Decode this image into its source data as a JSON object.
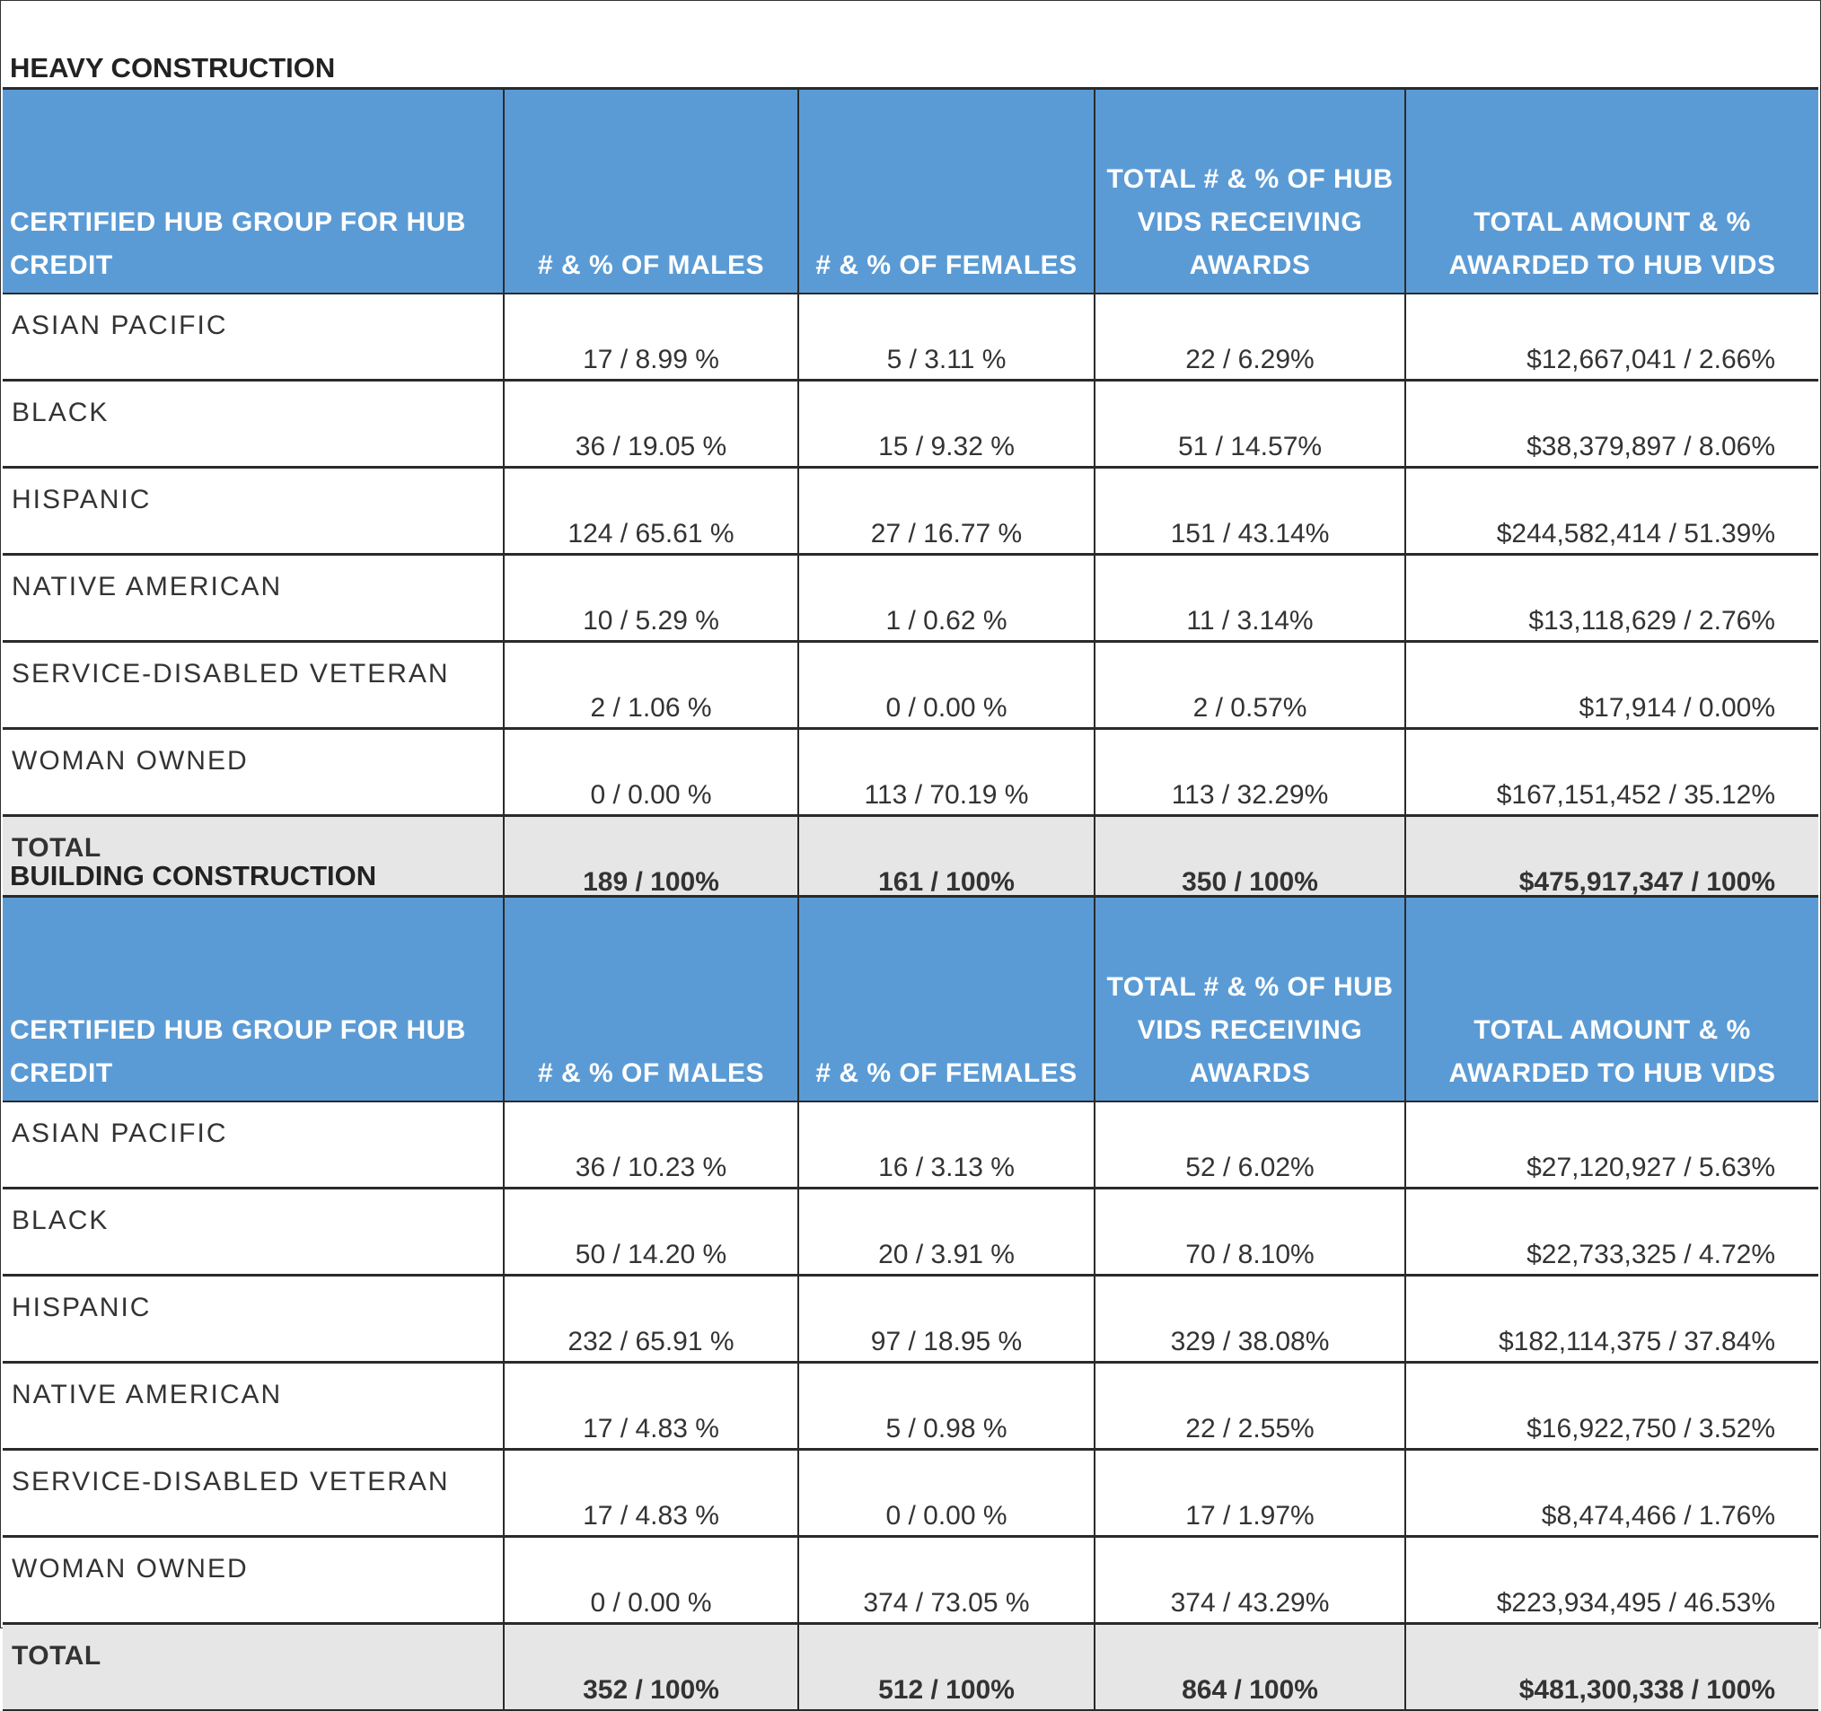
{
  "columns": [
    "CERTIFIED HUB GROUP FOR HUB CREDIT",
    "# & % OF MALES",
    "# & % OF FEMALES",
    "TOTAL # & % OF HUB VIDS RECEIVING AWARDS",
    "TOTAL AMOUNT & % AWARDED TO HUB VIDS"
  ],
  "sections": [
    {
      "title": "HEAVY CONSTRUCTION",
      "rows": [
        {
          "group": "ASIAN PACIFIC",
          "males": "17 / 8.99 %",
          "females": "5 / 3.11 %",
          "vids": "22 / 6.29%",
          "amount": "$12,667,041 / 2.66%"
        },
        {
          "group": "BLACK",
          "males": "36 / 19.05 %",
          "females": "15 / 9.32 %",
          "vids": "51 / 14.57%",
          "amount": "$38,379,897 / 8.06%"
        },
        {
          "group": "HISPANIC",
          "males": "124 / 65.61 %",
          "females": "27 / 16.77 %",
          "vids": "151 / 43.14%",
          "amount": "$244,582,414 / 51.39%"
        },
        {
          "group": "NATIVE AMERICAN",
          "males": "10 / 5.29 %",
          "females": "1 / 0.62 %",
          "vids": "11 / 3.14%",
          "amount": "$13,118,629 / 2.76%"
        },
        {
          "group": "SERVICE-DISABLED VETERAN",
          "males": "2 / 1.06 %",
          "females": "0 / 0.00 %",
          "vids": "2 / 0.57%",
          "amount": "$17,914 / 0.00%"
        },
        {
          "group": "WOMAN OWNED",
          "males": "0 / 0.00 %",
          "females": "113 / 70.19 %",
          "vids": "113 / 32.29%",
          "amount": "$167,151,452 / 35.12%"
        }
      ],
      "total": {
        "group": "TOTAL",
        "males": "189 / 100%",
        "females": "161 / 100%",
        "vids": "350 / 100%",
        "amount": "$475,917,347 / 100%"
      }
    },
    {
      "title": "BUILDING CONSTRUCTION",
      "rows": [
        {
          "group": "ASIAN PACIFIC",
          "males": "36 / 10.23 %",
          "females": "16 / 3.13 %",
          "vids": "52 / 6.02%",
          "amount": "$27,120,927 / 5.63%"
        },
        {
          "group": "BLACK",
          "males": "50 / 14.20 %",
          "females": "20 / 3.91 %",
          "vids": "70 / 8.10%",
          "amount": "$22,733,325 / 4.72%"
        },
        {
          "group": "HISPANIC",
          "males": "232 / 65.91 %",
          "females": "97 / 18.95 %",
          "vids": "329 / 38.08%",
          "amount": "$182,114,375 / 37.84%"
        },
        {
          "group": "NATIVE AMERICAN",
          "males": "17 / 4.83 %",
          "females": "5 / 0.98 %",
          "vids": "22 / 2.55%",
          "amount": "$16,922,750 / 3.52%"
        },
        {
          "group": "SERVICE-DISABLED VETERAN",
          "males": "17 / 4.83 %",
          "females": "0 / 0.00 %",
          "vids": "17 / 1.97%",
          "amount": "$8,474,466 / 1.76%"
        },
        {
          "group": "WOMAN OWNED",
          "males": "0 / 0.00 %",
          "females": "374 / 73.05 %",
          "vids": "374 / 43.29%",
          "amount": "$223,934,495 / 46.53%"
        }
      ],
      "total": {
        "group": "TOTAL",
        "males": "352 / 100%",
        "females": "512 / 100%",
        "vids": "864 / 100%",
        "amount": "$481,300,338 / 100%"
      }
    }
  ]
}
